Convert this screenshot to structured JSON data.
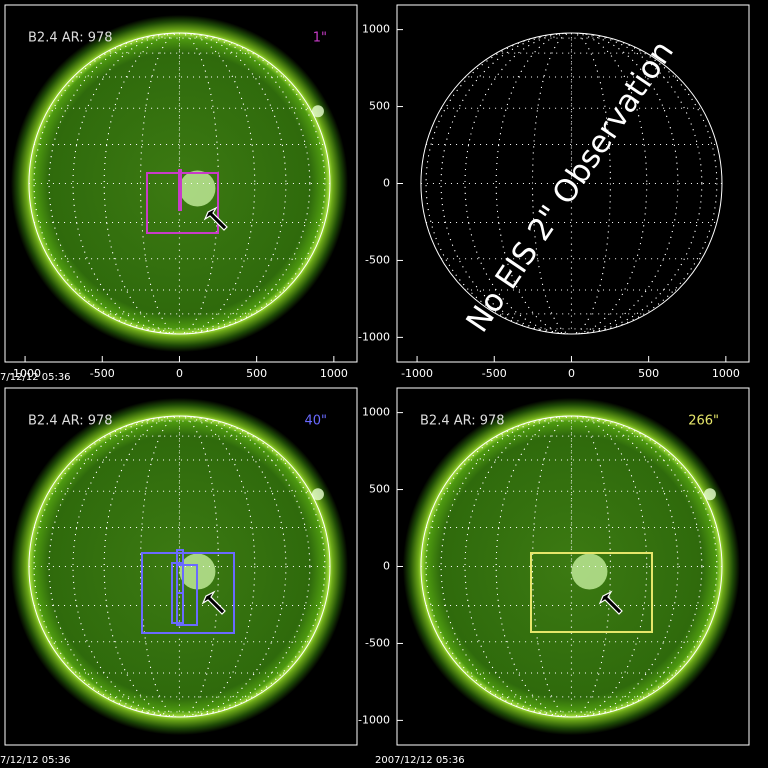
{
  "chart_data": [
    {
      "type": "image",
      "label": "B2.4 AR:  978",
      "fov": "1\"",
      "fov_color": "#c83cc8",
      "date": "7/12/12 05:36",
      "xlim": [
        -1130,
        1150
      ],
      "ylim": [
        -1160,
        1160
      ],
      "xticks": [
        -1000,
        -500,
        0,
        500,
        1000
      ]
    },
    {
      "type": "image",
      "annotation": "No EIS 2\" Observation",
      "xlim": [
        -1130,
        1150
      ],
      "ylim": [
        -1160,
        1160
      ],
      "xticks": [
        -1000,
        -500,
        0,
        500,
        1000
      ],
      "yticks": [
        1000,
        500,
        0,
        -500,
        -1000
      ]
    },
    {
      "type": "image",
      "label": "B2.4 AR:  978",
      "fov": "40\"",
      "fov_color": "#6a6aff",
      "date": "7/12/12 05:36",
      "xlim": [
        -1130,
        1150
      ],
      "ylim": [
        -1160,
        1160
      ]
    },
    {
      "type": "image",
      "label": "B2.4 AR:  978",
      "fov": "266\"",
      "fov_color": "#e6e66a",
      "date": "2007/12/12 05:36",
      "xlim": [
        -1130,
        1150
      ],
      "ylim": [
        -1160,
        1160
      ],
      "yticks": [
        1000,
        500,
        0,
        -500,
        -1000
      ]
    }
  ]
}
